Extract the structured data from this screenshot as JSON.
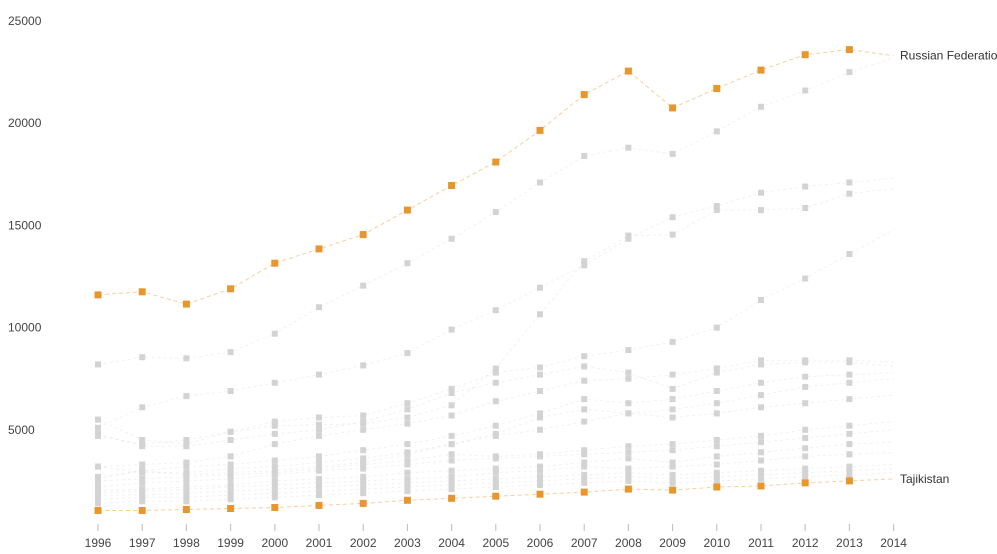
{
  "chart_data": {
    "type": "line",
    "x": [
      1996,
      1997,
      1998,
      1999,
      2000,
      2001,
      2002,
      2003,
      2004,
      2005,
      2006,
      2007,
      2008,
      2009,
      2010,
      2011,
      2012,
      2013,
      2014
    ],
    "x_tick_labels": [
      "1996",
      "1997",
      "1998",
      "1999",
      "2000",
      "2001",
      "2002",
      "2003",
      "2004",
      "2005",
      "2006",
      "2007",
      "2008",
      "2009",
      "2010",
      "2011",
      "2012",
      "2013",
      "2014"
    ],
    "ylim": [
      0,
      25000
    ],
    "y_ticks": [
      5000,
      10000,
      15000,
      20000,
      25000
    ],
    "y_tick_labels": [
      "5000",
      "10000",
      "15000",
      "20000",
      "25000"
    ],
    "grid": false,
    "highlight_color": "#e8962e",
    "background_color": "#d3d3d3",
    "series": [
      {
        "name": "Russian Federation",
        "highlight": true,
        "label_value": 23300,
        "values": [
          11600,
          11750,
          11150,
          11900,
          13150,
          13850,
          14550,
          15750,
          16950,
          18100,
          19650,
          21400,
          22550,
          20750,
          21700,
          22600,
          23350,
          23600,
          23300
        ]
      },
      {
        "name": "Tajikistan",
        "highlight": true,
        "label_value": 2600,
        "values": [
          1050,
          1050,
          1100,
          1150,
          1200,
          1300,
          1400,
          1550,
          1650,
          1750,
          1850,
          1950,
          2100,
          2050,
          2200,
          2250,
          2400,
          2500,
          2600
        ]
      },
      {
        "values": [
          8200,
          8550,
          8500,
          8800,
          9700,
          11000,
          12050,
          13150,
          14350,
          15650,
          17100,
          18400,
          18800,
          18500,
          19600,
          20800,
          21600,
          22500,
          23200
        ]
      },
      {
        "values": [
          5100,
          6100,
          6650,
          6900,
          7300,
          7700,
          8150,
          8750,
          9900,
          10850,
          11950,
          13050,
          14350,
          15400,
          15950,
          16600,
          16900,
          17100,
          17300
        ]
      },
      {
        "values": [
          4700,
          4300,
          4500,
          4900,
          5200,
          5250,
          5300,
          5600,
          6200,
          8000,
          10650,
          13250,
          14500,
          14550,
          15750,
          15750,
          15850,
          16550,
          16800
        ]
      },
      {
        "values": [
          5500,
          4500,
          4300,
          4900,
          5400,
          5600,
          5700,
          6300,
          7000,
          7800,
          8050,
          8600,
          8900,
          9300,
          10000,
          11350,
          12400,
          13600,
          14800
        ]
      },
      {
        "values": [
          4800,
          4200,
          4200,
          4500,
          4800,
          5000,
          5400,
          6000,
          6800,
          7300,
          7700,
          8100,
          7800,
          7000,
          7800,
          8200,
          8300,
          8300,
          8100
        ]
      },
      {
        "values": [
          3200,
          3300,
          3400,
          3700,
          4300,
          4700,
          5000,
          5300,
          5700,
          6400,
          6900,
          7400,
          7500,
          7700,
          8000,
          8400,
          8400,
          8400,
          8300
        ]
      },
      {
        "values": [
          2600,
          3000,
          3200,
          3300,
          3500,
          3700,
          4000,
          4300,
          4700,
          5200,
          5800,
          6500,
          6300,
          6500,
          6900,
          7300,
          7600,
          7700,
          7800
        ]
      },
      {
        "values": [
          3200,
          2900,
          2900,
          3100,
          3200,
          3400,
          3600,
          3900,
          4300,
          4800,
          5600,
          6000,
          5800,
          6000,
          6300,
          6700,
          7100,
          7300,
          7500
        ]
      },
      {
        "values": [
          2700,
          3000,
          2800,
          2900,
          3000,
          3200,
          3400,
          3800,
          4300,
          4700,
          5000,
          5400,
          5800,
          5600,
          5800,
          6100,
          6300,
          6500,
          6700
        ]
      },
      {
        "values": [
          2500,
          2600,
          2700,
          2800,
          2900,
          3100,
          3300,
          3500,
          3800,
          3700,
          3800,
          4000,
          4200,
          4300,
          4500,
          4700,
          5000,
          5200,
          5400
        ]
      },
      {
        "values": [
          2200,
          2400,
          2500,
          2600,
          2800,
          3000,
          3100,
          3300,
          3500,
          3600,
          3700,
          3800,
          3900,
          4000,
          4200,
          4400,
          4600,
          4800,
          5000
        ]
      },
      {
        "values": [
          2000,
          2100,
          2200,
          2300,
          2500,
          2600,
          2700,
          2900,
          3000,
          3100,
          3200,
          3400,
          3600,
          3400,
          3700,
          3900,
          4100,
          4300,
          4400
        ]
      },
      {
        "values": [
          1900,
          2000,
          2100,
          2200,
          2300,
          2400,
          2500,
          2600,
          2700,
          2900,
          3000,
          3200,
          3100,
          3200,
          3300,
          3500,
          3700,
          3800,
          3900
        ]
      },
      {
        "values": [
          1800,
          1800,
          1900,
          2000,
          2100,
          2200,
          2300,
          2400,
          2500,
          2600,
          2700,
          2800,
          2900,
          2800,
          2900,
          3000,
          3100,
          3200,
          3300
        ]
      },
      {
        "values": [
          1600,
          1700,
          1700,
          1800,
          1900,
          2000,
          2100,
          2200,
          2300,
          2400,
          2500,
          2600,
          2700,
          2600,
          2700,
          2800,
          2900,
          3000,
          3100
        ]
      },
      {
        "values": [
          1400,
          1500,
          1500,
          1600,
          1700,
          1800,
          1900,
          2000,
          2100,
          2200,
          2300,
          2400,
          2500,
          2400,
          2500,
          2600,
          2700,
          2800,
          2900
        ]
      }
    ]
  }
}
